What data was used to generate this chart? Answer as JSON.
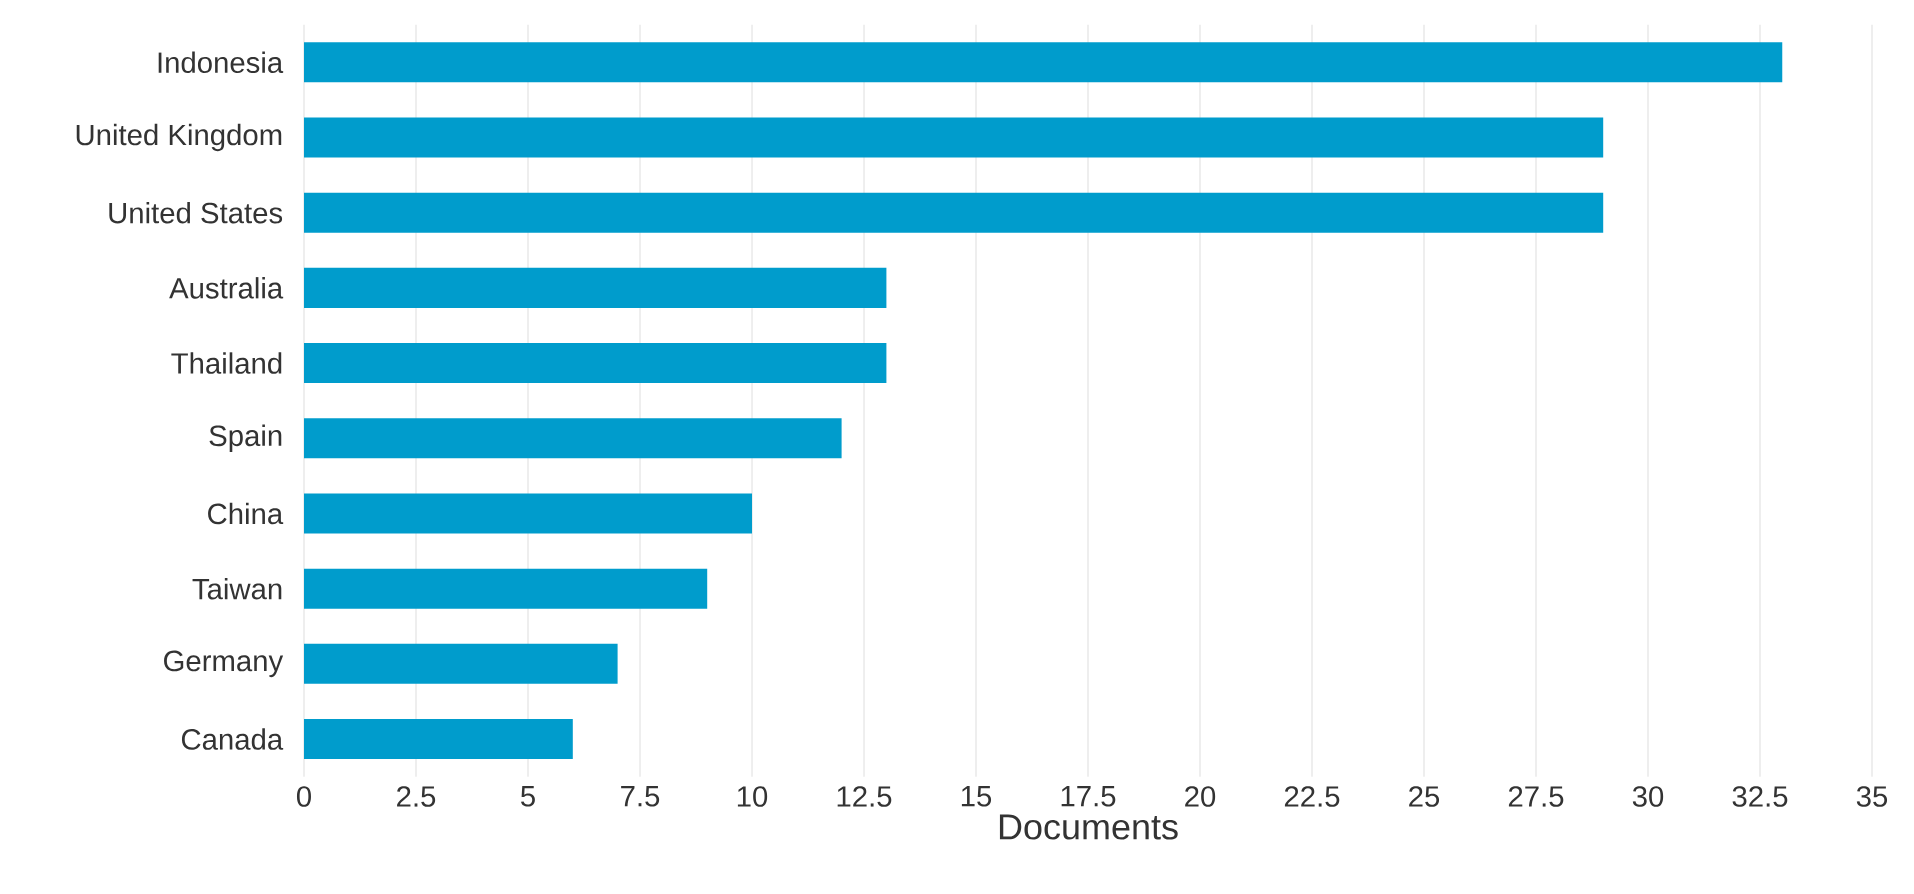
{
  "chart_data": {
    "type": "bar",
    "orientation": "horizontal",
    "xlabel": "Documents",
    "categories": [
      "Indonesia",
      "United Kingdom",
      "United States",
      "Australia",
      "Thailand",
      "Spain",
      "China",
      "Taiwan",
      "Germany",
      "Canada"
    ],
    "values": [
      33,
      29,
      29,
      13,
      13,
      12,
      10,
      9,
      7,
      6
    ],
    "color": "#009ccc",
    "xlim": [
      0,
      35
    ],
    "xticks": [
      0,
      2.5,
      5,
      7.5,
      10,
      12.5,
      15,
      17.5,
      20,
      22.5,
      25,
      27.5,
      30,
      32.5,
      35
    ],
    "grid": "x"
  }
}
